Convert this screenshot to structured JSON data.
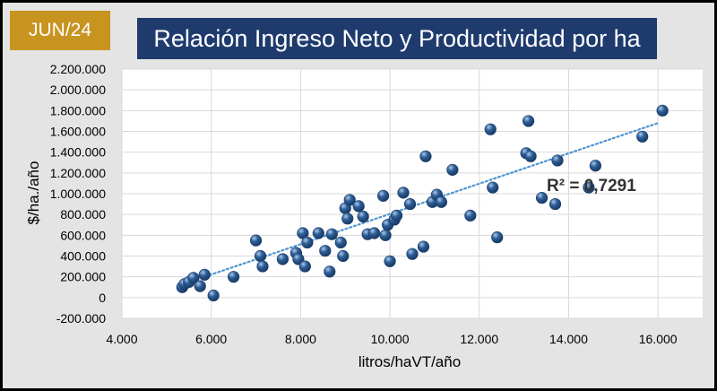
{
  "badge": "JUN/24",
  "title": "Relación Ingreso Neto y Productividad por ha",
  "colors": {
    "title_bg": "#1f3b6e",
    "badge_bg": "#c89420",
    "marker": "#2e5e96",
    "trendline": "#4f95d0"
  },
  "chart_data": {
    "type": "scatter",
    "xlabel": "litros/haVT/año",
    "ylabel": "$/ha./año",
    "xlim": [
      4000,
      17000
    ],
    "ylim": [
      -200000,
      2200000
    ],
    "x_ticks": [
      "4.000",
      "6.000",
      "8.000",
      "10.000",
      "12.000",
      "14.000",
      "16.000"
    ],
    "y_ticks": [
      "-200.000",
      "0",
      "200.000",
      "400.000",
      "600.000",
      "800.000",
      "1.000.000",
      "1.200.000",
      "1.400.000",
      "1.600.000",
      "1.800.000",
      "2.000.000",
      "2.200.000"
    ],
    "annotation": "R² = 0,7291",
    "trendline": {
      "type": "linear",
      "style": "dotted",
      "from": [
        5300,
        120000
      ],
      "to": [
        16000,
        1680000
      ]
    },
    "points": [
      [
        5350,
        100000
      ],
      [
        5400,
        130000
      ],
      [
        5500,
        150000
      ],
      [
        5600,
        190000
      ],
      [
        5750,
        110000
      ],
      [
        5850,
        220000
      ],
      [
        6050,
        20000
      ],
      [
        6500,
        200000
      ],
      [
        7000,
        550000
      ],
      [
        7100,
        400000
      ],
      [
        7150,
        300000
      ],
      [
        7600,
        370000
      ],
      [
        7900,
        430000
      ],
      [
        7950,
        370000
      ],
      [
        8050,
        620000
      ],
      [
        8100,
        300000
      ],
      [
        8150,
        530000
      ],
      [
        8400,
        620000
      ],
      [
        8550,
        450000
      ],
      [
        8650,
        250000
      ],
      [
        8700,
        610000
      ],
      [
        8900,
        530000
      ],
      [
        8950,
        400000
      ],
      [
        9000,
        860000
      ],
      [
        9050,
        760000
      ],
      [
        9100,
        940000
      ],
      [
        9300,
        880000
      ],
      [
        9400,
        780000
      ],
      [
        9500,
        610000
      ],
      [
        9650,
        620000
      ],
      [
        9850,
        980000
      ],
      [
        9900,
        600000
      ],
      [
        9950,
        700000
      ],
      [
        10000,
        350000
      ],
      [
        10100,
        750000
      ],
      [
        10150,
        790000
      ],
      [
        10300,
        1010000
      ],
      [
        10450,
        900000
      ],
      [
        10500,
        420000
      ],
      [
        10750,
        490000
      ],
      [
        10800,
        1360000
      ],
      [
        10950,
        920000
      ],
      [
        11050,
        990000
      ],
      [
        11150,
        920000
      ],
      [
        11400,
        1230000
      ],
      [
        11800,
        790000
      ],
      [
        12250,
        1620000
      ],
      [
        12300,
        1060000
      ],
      [
        12400,
        580000
      ],
      [
        13050,
        1390000
      ],
      [
        13100,
        1700000
      ],
      [
        13150,
        1360000
      ],
      [
        13400,
        960000
      ],
      [
        13700,
        900000
      ],
      [
        13750,
        1320000
      ],
      [
        14450,
        1060000
      ],
      [
        14600,
        1270000
      ],
      [
        15650,
        1550000
      ],
      [
        16100,
        1800000
      ]
    ]
  }
}
